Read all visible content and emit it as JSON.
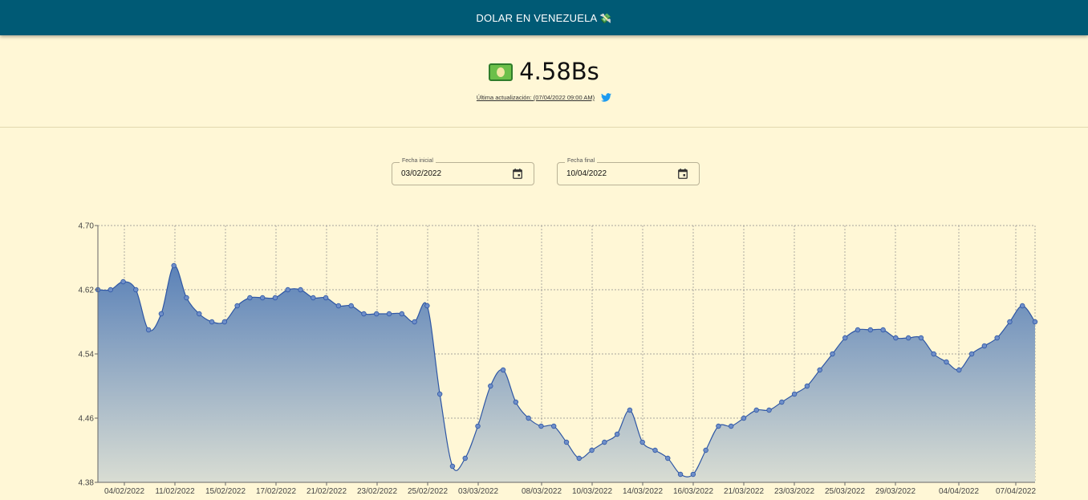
{
  "header": {
    "title": "DOLAR EN VENEZUELA",
    "title_emoji": "💸"
  },
  "price": {
    "icon": "money-icon",
    "value": "4.58Bs"
  },
  "update": {
    "text": "Última actualización: (07/04/2022 09:00 AM)",
    "icon": "twitter-icon"
  },
  "filters": {
    "start": {
      "label": "Fecha inicial",
      "value": "03/02/2022"
    },
    "end": {
      "label": "Fecha final",
      "value": "10/04/2022"
    }
  },
  "colors": {
    "header_bg": "#005a75",
    "page_bg": "#fff7d6",
    "line": "#2f57a5",
    "fill_top": "#5b82b8",
    "fill_bottom": "#d9ddd3"
  },
  "chart_data": {
    "type": "area",
    "title": "",
    "xlabel": "",
    "ylabel": "",
    "grid": true,
    "ylim": [
      4.38,
      4.7
    ],
    "y_ticks": [
      "4.38",
      "4.46",
      "4.54",
      "4.62",
      "4.70"
    ],
    "x_ticks": [
      "04/02/2022",
      "11/02/2022",
      "15/02/2022",
      "17/02/2022",
      "21/02/2022",
      "23/02/2022",
      "25/02/2022",
      "03/03/2022",
      "08/03/2022",
      "10/03/2022",
      "14/03/2022",
      "16/03/2022",
      "21/03/2022",
      "23/03/2022",
      "25/03/2022",
      "29/03/2022",
      "04/04/2022",
      "07/04/2022"
    ],
    "series": [
      {
        "values": [
          4.62,
          4.62,
          4.63,
          4.62,
          4.57,
          4.59,
          4.65,
          4.61,
          4.59,
          4.58,
          4.58,
          4.6,
          4.61,
          4.61,
          4.61,
          4.62,
          4.62,
          4.61,
          4.61,
          4.6,
          4.6,
          4.59,
          4.59,
          4.59,
          4.59,
          4.58,
          4.6,
          4.49,
          4.4,
          4.41,
          4.45,
          4.5,
          4.52,
          4.48,
          4.46,
          4.45,
          4.45,
          4.43,
          4.41,
          4.42,
          4.43,
          4.44,
          4.47,
          4.43,
          4.42,
          4.41,
          4.39,
          4.39,
          4.42,
          4.45,
          4.45,
          4.46,
          4.47,
          4.47,
          4.48,
          4.49,
          4.5,
          4.52,
          4.54,
          4.56,
          4.57,
          4.57,
          4.57,
          4.56,
          4.56,
          4.56,
          4.54,
          4.53,
          4.52,
          4.54,
          4.55,
          4.56,
          4.58,
          4.6,
          4.58
        ]
      }
    ]
  }
}
